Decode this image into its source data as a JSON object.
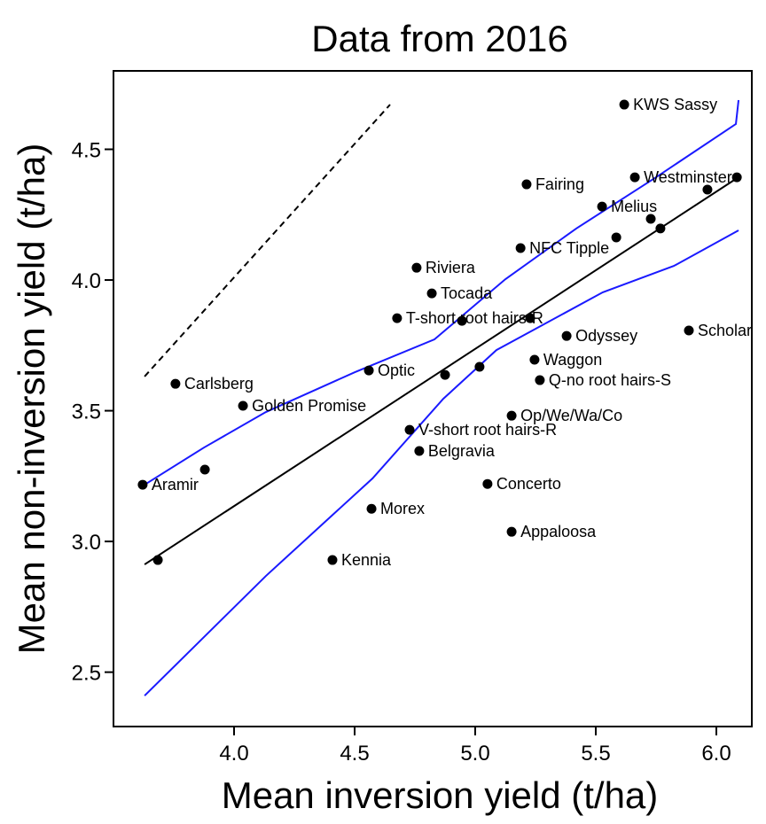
{
  "chart_data": {
    "type": "scatter",
    "title": "Data from 2016",
    "x_label": "Mean inversion yield (t/ha)",
    "y_label": "Mean non-inversion yield (t/ha)",
    "xlim": [
      3.5,
      6.147
    ],
    "ylim": [
      2.292,
      4.8
    ],
    "xticks": [
      {
        "value": 4.0,
        "label": "4.0"
      },
      {
        "value": 4.5,
        "label": "4.5"
      },
      {
        "value": 5.0,
        "label": "5.0"
      },
      {
        "value": 5.5,
        "label": "5.5"
      },
      {
        "value": 6.0,
        "label": "6.0"
      }
    ],
    "yticks": [
      {
        "value": 2.5,
        "label": "2.5"
      },
      {
        "value": 3.0,
        "label": "3.0"
      },
      {
        "value": 3.5,
        "label": "3.5"
      },
      {
        "value": 4.0,
        "label": "4.0"
      },
      {
        "value": 4.5,
        "label": "4.5"
      }
    ],
    "points": {
      "color": "#000000",
      "x": [
        5.618,
        5.662,
        5.213,
        5.526,
        6.085,
        5.963,
        5.728,
        5.768,
        5.585,
        5.188,
        4.757,
        4.82,
        4.676,
        4.945,
        5.228,
        5.379,
        5.886,
        5.246,
        4.559,
        4.875,
        5.018,
        5.268,
        3.757,
        4.037,
        5.151,
        4.728,
        4.768,
        3.879,
        3.621,
        5.051,
        4.57,
        5.151,
        3.684,
        4.408
      ],
      "values": [
        4.671,
        4.393,
        4.366,
        4.281,
        4.393,
        4.346,
        4.234,
        4.197,
        4.163,
        4.122,
        4.047,
        3.949,
        3.854,
        3.844,
        3.854,
        3.786,
        3.807,
        3.695,
        3.654,
        3.637,
        3.668,
        3.617,
        3.603,
        3.519,
        3.481,
        3.427,
        3.346,
        3.275,
        3.217,
        3.22,
        3.125,
        3.037,
        2.929,
        2.929
      ],
      "labels": [
        "KWS Sassy",
        "Westminster",
        "Fairing",
        "Melius",
        null,
        null,
        null,
        null,
        null,
        "NFC Tipple",
        "Riviera",
        "Tocada",
        "T-short root hairs-R",
        null,
        null,
        "Odyssey",
        "Scholar",
        "Waggon",
        "Optic",
        null,
        null,
        "Q-no root hairs-S",
        "Carlsberg",
        "Golden Promise",
        "Op/We/Wa/Co",
        "V-short root hairs-R",
        "Belgravia",
        null,
        "Aramir",
        "Concerto",
        "Morex",
        "Appaloosa",
        null,
        "Kennia"
      ]
    },
    "lines": [
      {
        "color": "#000000",
        "dashed": false,
        "x": [
          3.629,
          6.103
        ],
        "values": [
          2.912,
          4.4
        ]
      },
      {
        "color": "#1a1aff",
        "dashed": false,
        "x": [
          3.629,
          3.875,
          4.132,
          4.5,
          4.831,
          5.125,
          5.419,
          5.75,
          6.081,
          6.092
        ],
        "values": [
          3.217,
          3.359,
          3.495,
          3.647,
          3.773,
          4.003,
          4.197,
          4.393,
          4.597,
          4.688
        ]
      },
      {
        "color": "#1a1aff",
        "dashed": false,
        "x": [
          3.629,
          4.132,
          4.574,
          4.868,
          5.088,
          5.529,
          5.824,
          6.092
        ],
        "values": [
          2.41,
          2.868,
          3.241,
          3.546,
          3.732,
          3.953,
          4.054,
          4.19
        ]
      },
      {
        "color": "#000000",
        "dashed": true,
        "x": [
          3.629,
          4.647
        ],
        "values": [
          3.631,
          4.671
        ]
      }
    ]
  }
}
